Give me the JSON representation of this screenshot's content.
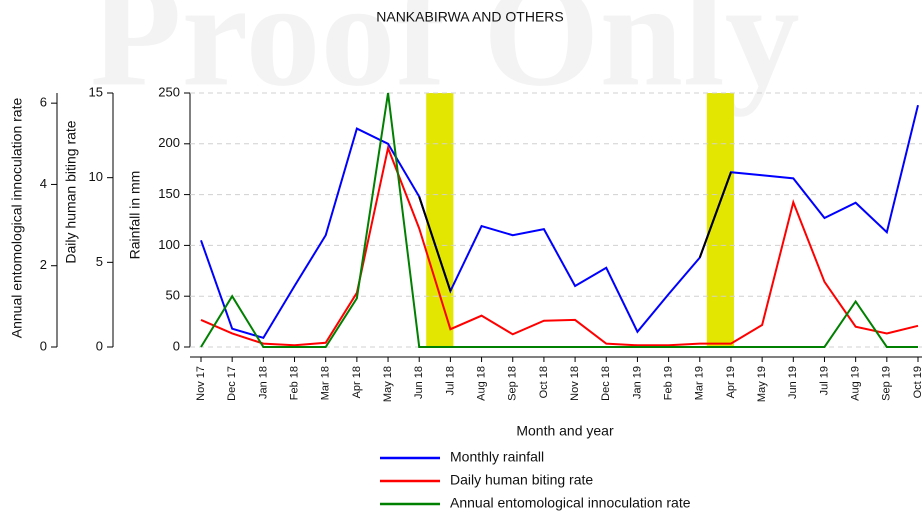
{
  "watermark": "Proof Only",
  "header": "NANKABIRWA AND OTHERS",
  "chart_data": {
    "type": "line",
    "x_label": "Month and year",
    "y_label": "Rainfall in mm",
    "y2_label": "Daily human biting rate",
    "y3_label": "Annual entomological innoculation rate",
    "categories": [
      "Nov 17",
      "Dec 17",
      "Jan 18",
      "Feb 18",
      "Mar 18",
      "Apr 18",
      "May 18",
      "Jun 18",
      "Jul 18",
      "Aug 18",
      "Sep 18",
      "Oct 18",
      "Nov 18",
      "Dec 18",
      "Jan 19",
      "Feb 19",
      "Mar 19",
      "Apr 19",
      "May 19",
      "Jun 19",
      "Jul 19",
      "Aug 19",
      "Sep 19",
      "Oct 19"
    ],
    "ylim": [
      0,
      250
    ],
    "yticks": [
      0,
      50,
      100,
      150,
      200,
      250
    ],
    "y2lim": [
      0,
      15
    ],
    "y2ticks": [
      0,
      5,
      10,
      15
    ],
    "y3lim": [
      0,
      6.25
    ],
    "y3ticks": [
      0,
      2,
      4,
      6
    ],
    "grid": true,
    "highlight_spans": [
      [
        7,
        8
      ],
      [
        16,
        17
      ]
    ],
    "highlight_color": "#e3e600",
    "highlight_line_color": "#000000",
    "series": [
      {
        "name": "Monthly rainfall",
        "color": "#0000ff",
        "axis": "y",
        "values": [
          105,
          18,
          9,
          60,
          110,
          215,
          200,
          148,
          55,
          119,
          110,
          116,
          60,
          78,
          15,
          52,
          88,
          172,
          169,
          166,
          127,
          142,
          113,
          238
        ]
      },
      {
        "name": "Daily human biting rate",
        "color": "#ff0000",
        "axis": "y2",
        "values": [
          1.6,
          0.8,
          0.2,
          0.1,
          0.25,
          3.2,
          11.75,
          7.0,
          1.05,
          1.85,
          0.75,
          1.55,
          1.6,
          0.2,
          0.1,
          0.1,
          0.2,
          0.2,
          1.3,
          8.55,
          3.85,
          1.2,
          0.8,
          1.25
        ]
      },
      {
        "name": "Annual entomological innoculation rate",
        "color": "#008000",
        "axis": "y3",
        "values": [
          0,
          1.25,
          0,
          0,
          0,
          1.2,
          6.25,
          0,
          0,
          0,
          0,
          0,
          0,
          0,
          0,
          0,
          0,
          0,
          0,
          0,
          0,
          1.12,
          0,
          0
        ]
      }
    ]
  }
}
